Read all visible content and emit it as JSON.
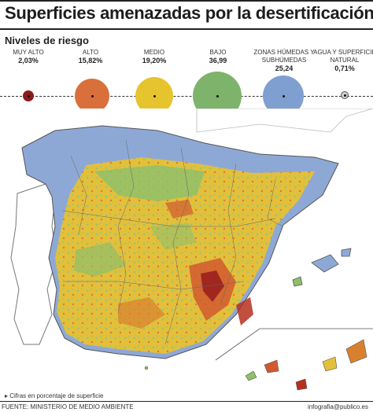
{
  "header": {
    "title": "Superficies amenazadas por la desertificación",
    "subtitle": "Niveles de riesgo"
  },
  "legend": [
    {
      "label": "MUY ALTO",
      "value": "2,03%",
      "color": "#8b1a1a"
    },
    {
      "label": "ALTO",
      "value": "15,82%",
      "color": "#d96f3a"
    },
    {
      "label": "MEDIO",
      "value": "19,20%",
      "color": "#e6c42e"
    },
    {
      "label": "BAJO",
      "value": "36,99",
      "color": "#7db36b"
    },
    {
      "label": "ZONAS HÚMEDAS Y SUBHÚMEDAS",
      "value": "25,24",
      "color": "#7f9fd1"
    },
    {
      "label": "AGUA Y SUPERFICIE NATURAL",
      "value": "0,71%",
      "color": "#cfcfcf"
    }
  ],
  "footer": {
    "note": "Cifras en porcentaje de superficie",
    "source": "FUENTE: MINISTERIO DE MEDIO AMBIENTE",
    "credit": "infografia@publico.es"
  }
}
